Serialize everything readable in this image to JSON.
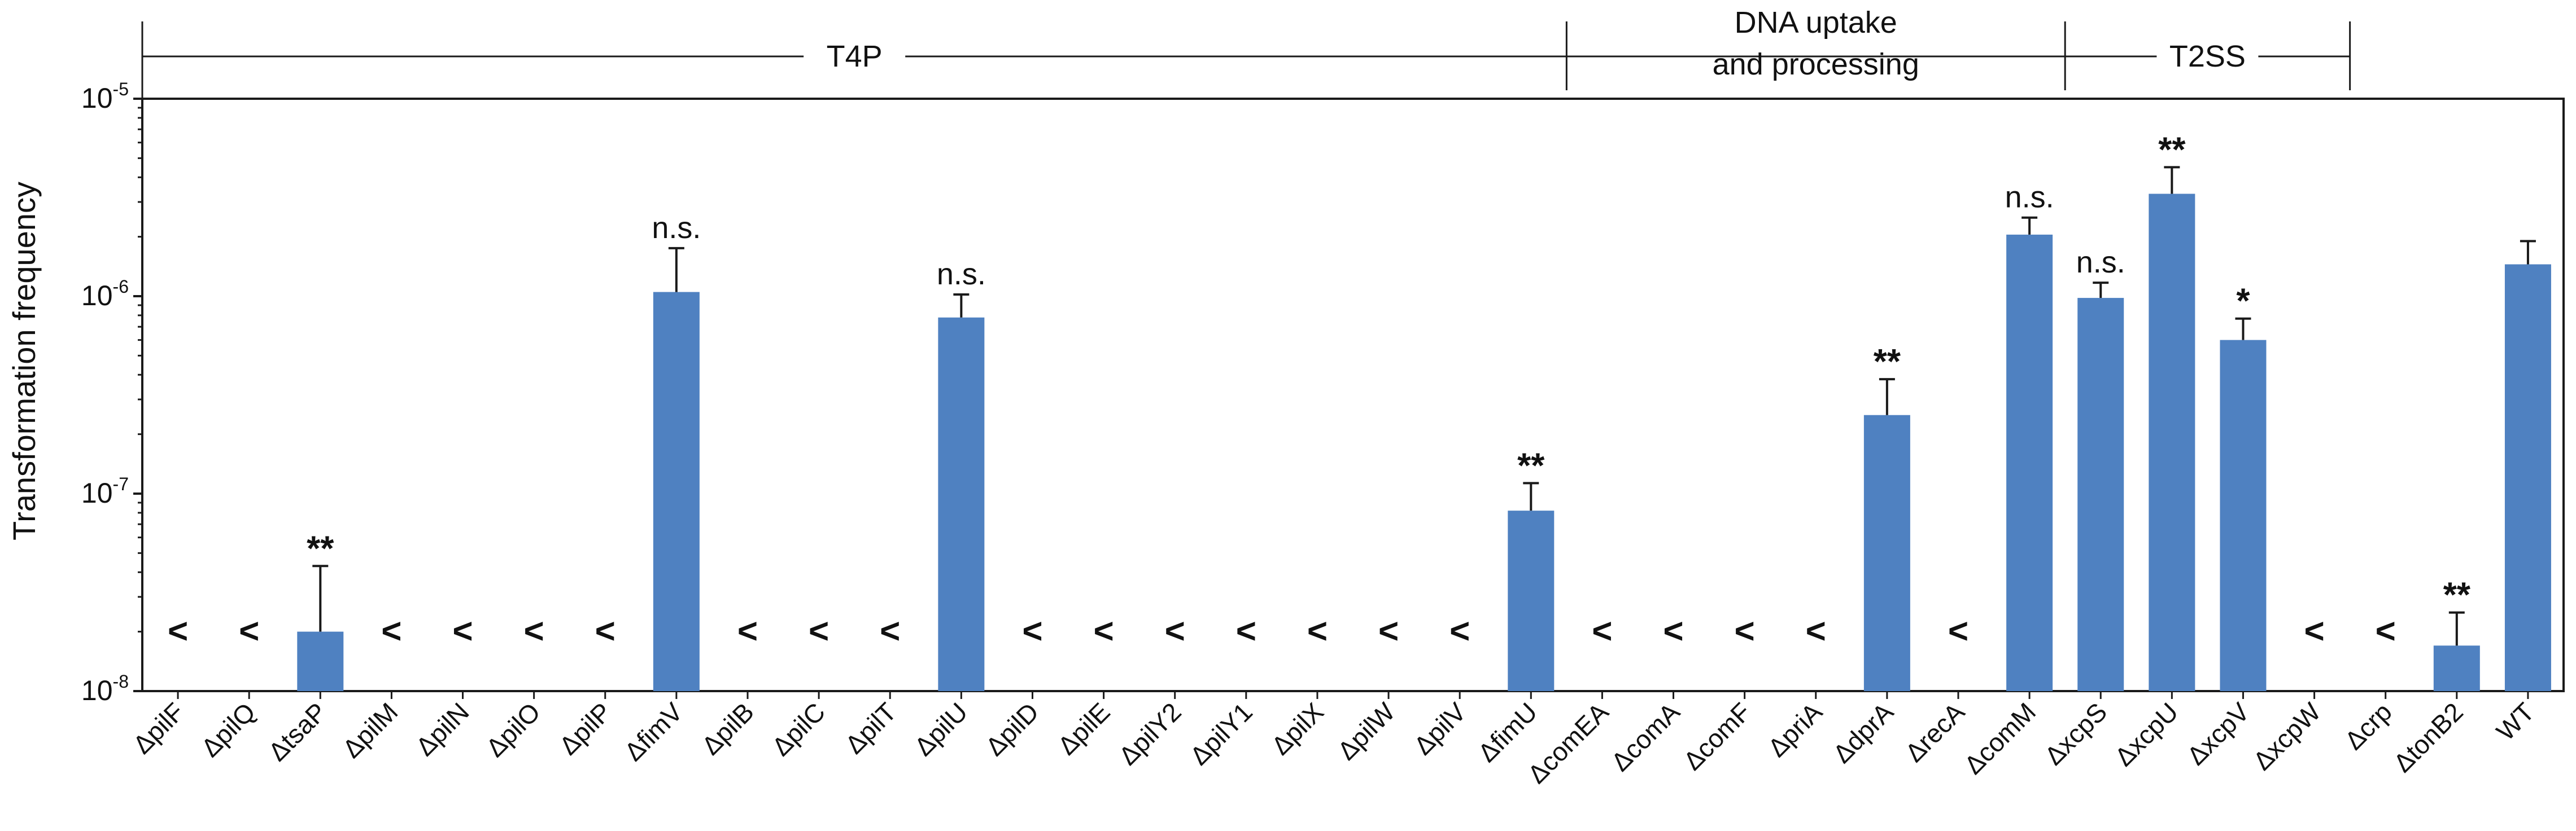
{
  "chart_data": {
    "type": "bar",
    "y_scale": "log",
    "ylim": [
      1e-08,
      1e-05
    ],
    "ylabel": "Transformation frequency",
    "xlabel": "",
    "title": "",
    "grid": false,
    "bar_color": "#4F81C1",
    "y_ticks": [
      {
        "value": 1e-08,
        "base": "10",
        "exp": "-8"
      },
      {
        "value": 1e-07,
        "base": "10",
        "exp": "-7"
      },
      {
        "value": 1e-06,
        "base": "10",
        "exp": "-6"
      },
      {
        "value": 1e-05,
        "base": "10",
        "exp": "-5"
      }
    ],
    "detection_limit_marker": "<",
    "detection_limit_value": 2e-08,
    "categories": [
      "ΔpilF",
      "ΔpilQ",
      "ΔtsaP",
      "ΔpilM",
      "ΔpilN",
      "ΔpilO",
      "ΔpilP",
      "ΔfimV",
      "ΔpilB",
      "ΔpilC",
      "ΔpilT",
      "ΔpilU",
      "ΔpilD",
      "ΔpilE",
      "ΔpilY2",
      "ΔpilY1",
      "ΔpilX",
      "ΔpilW",
      "ΔpilV",
      "ΔfimU",
      "ΔcomEA",
      "ΔcomA",
      "ΔcomF",
      "ΔpriA",
      "ΔdprA",
      "ΔrecA",
      "ΔcomM",
      "ΔxcpS",
      "ΔxcpU",
      "ΔxcpV",
      "ΔxcpW",
      "Δcrp",
      "ΔtonB2",
      "WT"
    ],
    "values": [
      null,
      null,
      2e-08,
      null,
      null,
      null,
      null,
      1.05e-06,
      null,
      null,
      null,
      7.8e-07,
      null,
      null,
      null,
      null,
      null,
      null,
      null,
      8.2e-08,
      null,
      null,
      null,
      null,
      2.5e-07,
      null,
      2.05e-06,
      9.8e-07,
      3.3e-06,
      6e-07,
      null,
      null,
      1.7e-08,
      1.45e-06
    ],
    "error_upper": [
      null,
      null,
      4.3e-08,
      null,
      null,
      null,
      null,
      1.75e-06,
      null,
      null,
      null,
      1.02e-06,
      null,
      null,
      null,
      null,
      null,
      null,
      null,
      1.13e-07,
      null,
      null,
      null,
      null,
      3.8e-07,
      null,
      2.5e-06,
      1.17e-06,
      4.5e-06,
      7.7e-07,
      null,
      null,
      2.5e-08,
      1.9e-06
    ],
    "below_detection": [
      true,
      true,
      false,
      true,
      true,
      true,
      true,
      false,
      true,
      true,
      true,
      false,
      true,
      true,
      true,
      true,
      true,
      true,
      true,
      false,
      true,
      true,
      true,
      true,
      false,
      true,
      false,
      false,
      false,
      false,
      true,
      true,
      false,
      false
    ],
    "significance": [
      "",
      "",
      "**",
      "",
      "",
      "",
      "",
      "n.s.",
      "",
      "",
      "",
      "n.s.",
      "",
      "",
      "",
      "",
      "",
      "",
      "",
      "**",
      "",
      "",
      "",
      "",
      "**",
      "",
      "n.s.",
      "n.s.",
      "**",
      "*",
      "",
      "",
      "**",
      ""
    ],
    "groups": [
      {
        "label_lines": [
          "T4P"
        ],
        "start": 0,
        "end": 19
      },
      {
        "label_lines": [
          "DNA uptake",
          "and processing"
        ],
        "start": 20,
        "end": 26
      },
      {
        "label_lines": [
          "T2SS"
        ],
        "start": 27,
        "end": 30
      }
    ]
  }
}
